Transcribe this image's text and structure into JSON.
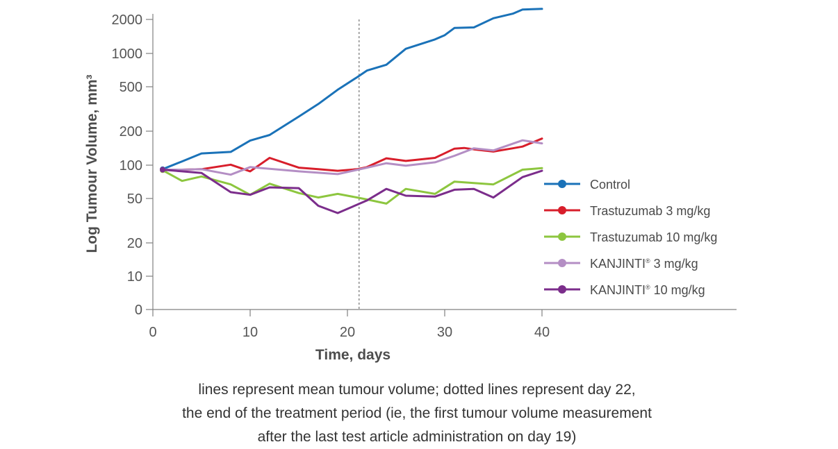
{
  "chart_data": {
    "type": "line",
    "xlabel": "Time, days",
    "ylabel": "Log Tumour Volume, mm³",
    "xlim": [
      0,
      60
    ],
    "xticks": [
      0,
      10,
      20,
      30,
      40
    ],
    "yscale": "log",
    "yticks": [
      0,
      10,
      20,
      50,
      100,
      200,
      500,
      1000,
      2000
    ],
    "grid": false,
    "legend_position": "right",
    "reference_line": {
      "x": 21.2,
      "style": "dotted"
    },
    "series": [
      {
        "name": "Control",
        "color": "#1a72b8",
        "x": [
          1,
          3,
          5,
          8,
          10,
          12,
          15,
          17,
          19,
          21,
          22,
          24,
          26,
          29,
          30,
          31,
          33,
          35,
          37,
          38,
          40
        ],
        "y": [
          92,
          108,
          127,
          131,
          165,
          185,
          270,
          350,
          470,
          610,
          700,
          790,
          1100,
          1330,
          1450,
          1680,
          1700,
          2050,
          2250,
          2450,
          2480
        ]
      },
      {
        "name": "Trastuzumab 3 mg/kg",
        "color": "#d81e2b",
        "x": [
          1,
          3,
          5,
          8,
          10,
          12,
          15,
          17,
          19,
          21,
          22,
          24,
          26,
          29,
          31,
          32,
          33,
          35,
          37,
          38,
          40
        ],
        "y": [
          91,
          91,
          92,
          101,
          88,
          116,
          95,
          92,
          89,
          92,
          96,
          115,
          109,
          116,
          140,
          142,
          138,
          132,
          141,
          146,
          172
        ]
      },
      {
        "name": "Trastuzumab 10 mg/kg",
        "color": "#8dc63f",
        "x": [
          1,
          3,
          5,
          8,
          10,
          12,
          15,
          17,
          19,
          21,
          22,
          24,
          26,
          29,
          31,
          33,
          35,
          38,
          40
        ],
        "y": [
          90,
          72,
          79,
          67,
          54,
          68,
          56,
          51,
          55,
          51,
          49,
          45,
          61,
          55,
          71,
          69,
          67,
          91,
          94
        ]
      },
      {
        "name": "KANJINTI® 3 mg/kg",
        "color": "#b48ec4",
        "x": [
          1,
          3,
          5,
          8,
          10,
          15,
          19,
          22,
          24,
          26,
          29,
          31,
          33,
          35,
          38,
          40
        ],
        "y": [
          91,
          91,
          92,
          82,
          96,
          88,
          83,
          95,
          104,
          99,
          106,
          121,
          141,
          135,
          166,
          156
        ]
      },
      {
        "name": "KANJINTI® 10 mg/kg",
        "color": "#7b2d8b",
        "x": [
          1,
          3,
          5,
          8,
          10,
          12,
          15,
          17,
          19,
          22,
          24,
          26,
          29,
          31,
          33,
          35,
          38,
          40
        ],
        "y": [
          91,
          88,
          85,
          57,
          54,
          63,
          62,
          43,
          37,
          48,
          61,
          53,
          52,
          60,
          61,
          51,
          78,
          89
        ]
      }
    ]
  },
  "caption": {
    "line1": "lines represent mean tumour volume; dotted lines represent day 22,",
    "line2": "the end of the treatment period (ie, the first tumour volume measurement",
    "line3": "after the last test article administration on day 19)"
  }
}
